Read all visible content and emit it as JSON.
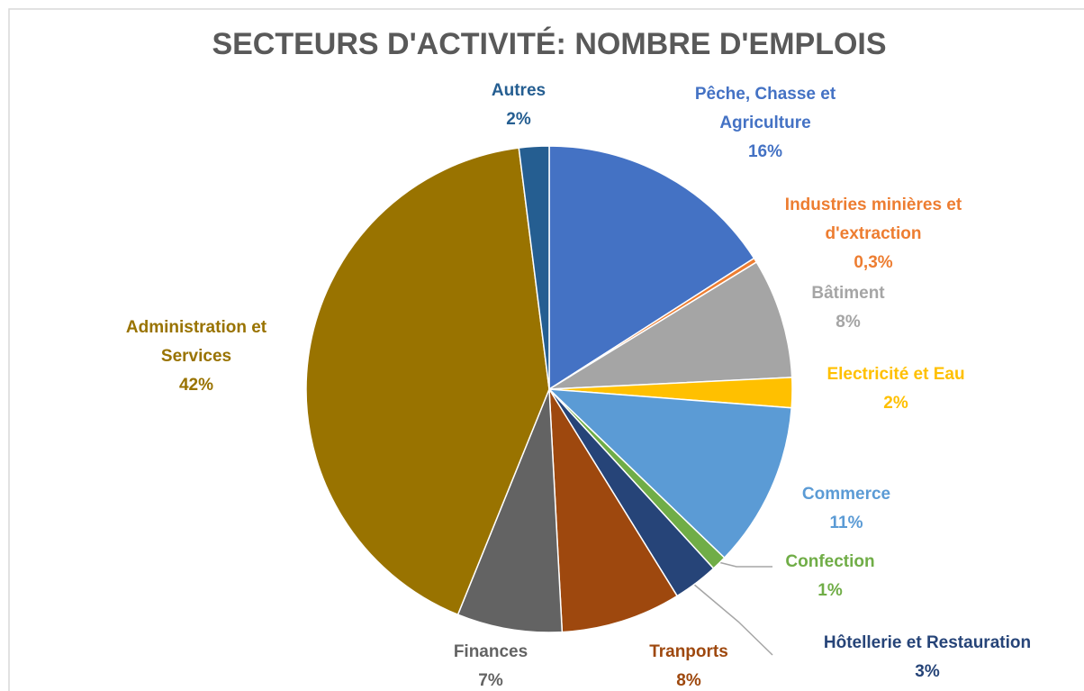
{
  "chart_data": {
    "type": "pie",
    "title": "SECTEURS D'ACTIVITÉ: NOMBRE D'EMPLOIS",
    "categories": [
      "Pêche, Chasse et Agriculture",
      "Industries minières et d'extraction",
      "Bâtiment",
      "Electricité et Eau",
      "Commerce",
      "Confection",
      "Hôtellerie et Restauration",
      "Tranports",
      "Finances",
      "Administration et Services",
      "Autres"
    ],
    "values": [
      16,
      0.3,
      8,
      2,
      11,
      1,
      3,
      8,
      7,
      42,
      2
    ],
    "value_labels": [
      "16%",
      "0,3%",
      "8%",
      "2%",
      "11%",
      "1%",
      "3%",
      "8%",
      "7%",
      "42%",
      "2%"
    ],
    "colors": [
      "#4472c4",
      "#ed7d31",
      "#a5a5a5",
      "#ffc000",
      "#5b9bd5",
      "#70ad47",
      "#264478",
      "#9e480e",
      "#636363",
      "#997300",
      "#255e91"
    ]
  }
}
